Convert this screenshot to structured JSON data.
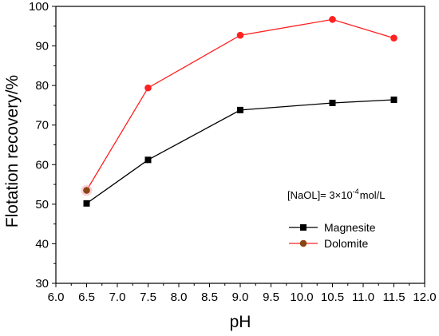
{
  "chart_data": {
    "type": "line",
    "xlabel": "pH",
    "ylabel": "Flotation recovery/%",
    "xlim": [
      6.0,
      12.0
    ],
    "ylim": [
      30,
      100
    ],
    "x_ticks": [
      "6.0",
      "6.5",
      "7.0",
      "7.5",
      "8.0",
      "8.5",
      "9.0",
      "9.5",
      "10.0",
      "10.5",
      "11.0",
      "11.5",
      "12.0"
    ],
    "y_ticks": [
      "30",
      "40",
      "50",
      "60",
      "70",
      "80",
      "90",
      "100"
    ],
    "annotation": {
      "prefix": "[NaOL]= 3×10",
      "exponent": "-4",
      "suffix": "mol/L"
    },
    "legend_position": "lower-right",
    "series": [
      {
        "name": "Magnesite",
        "color": "#000000",
        "marker": "square",
        "x": [
          6.5,
          7.5,
          9.0,
          10.5,
          11.5
        ],
        "y": [
          50.2,
          61.2,
          73.8,
          75.6,
          76.4
        ]
      },
      {
        "name": "Dolomite",
        "color": "#ff2020",
        "marker_color": "#8B4513",
        "marker": "circle",
        "x": [
          6.5,
          7.5,
          9.0,
          10.5,
          11.5
        ],
        "y": [
          53.5,
          79.4,
          92.7,
          96.7,
          92.0
        ]
      }
    ]
  }
}
